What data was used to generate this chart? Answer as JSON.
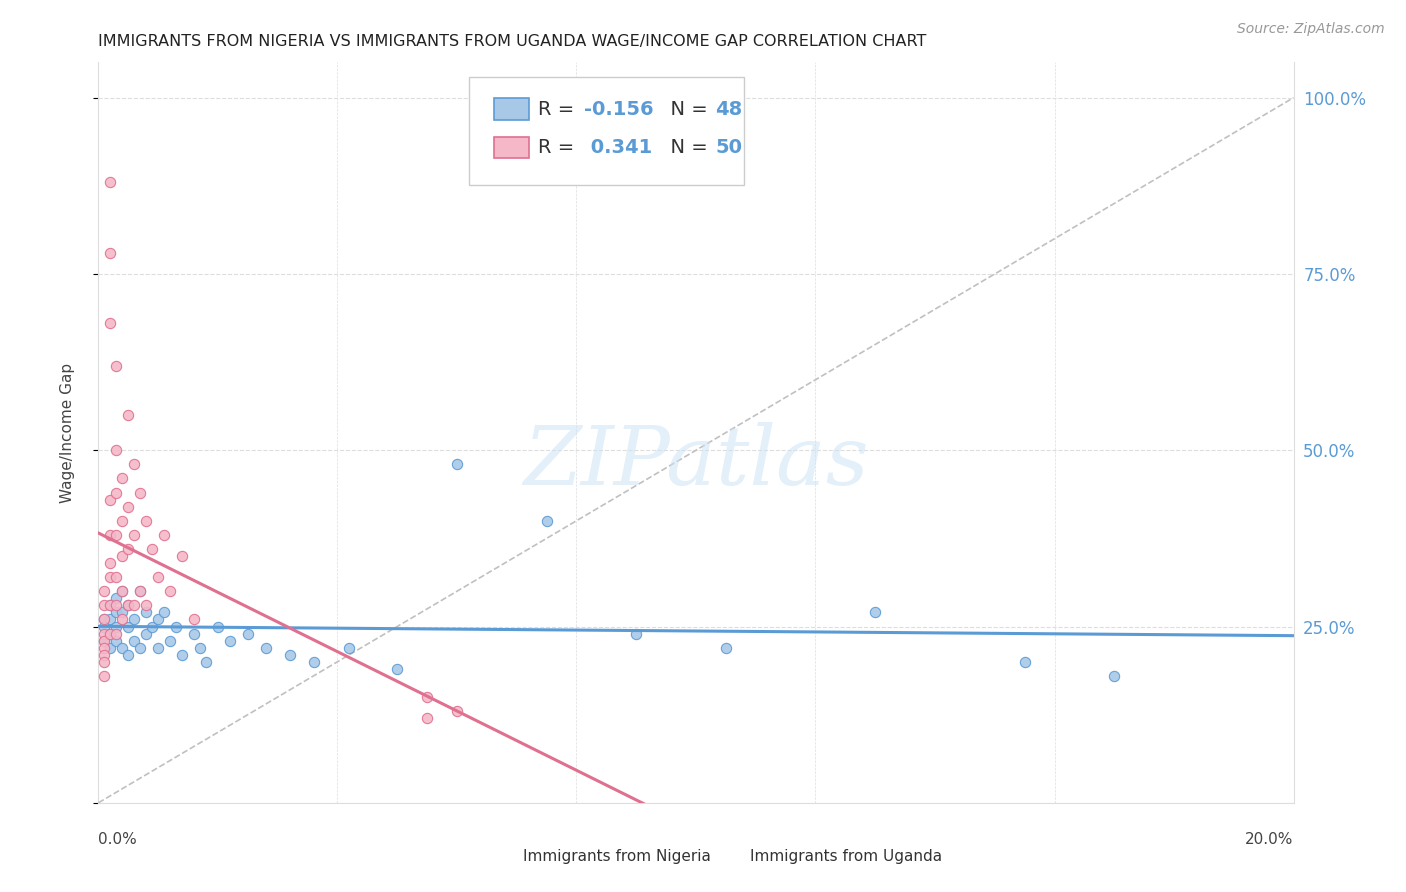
{
  "title": "IMMIGRANTS FROM NIGERIA VS IMMIGRANTS FROM UGANDA WAGE/INCOME GAP CORRELATION CHART",
  "source": "Source: ZipAtlas.com",
  "ylabel": "Wage/Income Gap",
  "legend_nigeria": "Immigrants from Nigeria",
  "legend_uganda": "Immigrants from Uganda",
  "R_nigeria": -0.156,
  "N_nigeria": 48,
  "R_uganda": 0.341,
  "N_uganda": 50,
  "color_nigeria_fill": "#a8c8e8",
  "color_nigeria_edge": "#5b9bd5",
  "color_uganda_fill": "#f4b8c8",
  "color_uganda_edge": "#e07090",
  "color_nigeria_line": "#5b9bd5",
  "color_uganda_line": "#e07090",
  "color_dashed": "#c0c0c0",
  "color_grid": "#dddddd",
  "nigeria_x": [
    0.001,
    0.001,
    0.001,
    0.002,
    0.002,
    0.002,
    0.002,
    0.003,
    0.003,
    0.003,
    0.003,
    0.004,
    0.004,
    0.004,
    0.005,
    0.005,
    0.005,
    0.006,
    0.006,
    0.007,
    0.007,
    0.008,
    0.008,
    0.009,
    0.01,
    0.01,
    0.011,
    0.012,
    0.013,
    0.014,
    0.016,
    0.017,
    0.018,
    0.02,
    0.022,
    0.025,
    0.028,
    0.032,
    0.036,
    0.042,
    0.05,
    0.06,
    0.075,
    0.09,
    0.105,
    0.13,
    0.155,
    0.17
  ],
  "nigeria_y": [
    0.26,
    0.25,
    0.23,
    0.28,
    0.26,
    0.24,
    0.22,
    0.29,
    0.27,
    0.25,
    0.23,
    0.3,
    0.27,
    0.22,
    0.28,
    0.25,
    0.21,
    0.26,
    0.23,
    0.3,
    0.22,
    0.27,
    0.24,
    0.25,
    0.26,
    0.22,
    0.27,
    0.23,
    0.25,
    0.21,
    0.24,
    0.22,
    0.2,
    0.25,
    0.23,
    0.24,
    0.22,
    0.21,
    0.2,
    0.22,
    0.19,
    0.48,
    0.4,
    0.24,
    0.22,
    0.27,
    0.2,
    0.18
  ],
  "uganda_x": [
    0.001,
    0.001,
    0.001,
    0.001,
    0.001,
    0.001,
    0.001,
    0.001,
    0.001,
    0.002,
    0.002,
    0.002,
    0.002,
    0.002,
    0.002,
    0.002,
    0.002,
    0.002,
    0.003,
    0.003,
    0.003,
    0.003,
    0.003,
    0.003,
    0.003,
    0.004,
    0.004,
    0.004,
    0.004,
    0.004,
    0.005,
    0.005,
    0.005,
    0.005,
    0.006,
    0.006,
    0.006,
    0.007,
    0.007,
    0.008,
    0.008,
    0.009,
    0.01,
    0.011,
    0.012,
    0.014,
    0.016,
    0.055,
    0.06,
    0.055
  ],
  "uganda_y": [
    0.3,
    0.28,
    0.26,
    0.24,
    0.23,
    0.22,
    0.21,
    0.2,
    0.18,
    0.88,
    0.78,
    0.68,
    0.43,
    0.38,
    0.34,
    0.32,
    0.28,
    0.24,
    0.62,
    0.5,
    0.44,
    0.38,
    0.32,
    0.28,
    0.24,
    0.46,
    0.4,
    0.35,
    0.3,
    0.26,
    0.55,
    0.42,
    0.36,
    0.28,
    0.48,
    0.38,
    0.28,
    0.44,
    0.3,
    0.4,
    0.28,
    0.36,
    0.32,
    0.38,
    0.3,
    0.35,
    0.26,
    0.15,
    0.13,
    0.12
  ],
  "xlim": [
    0.0,
    0.2
  ],
  "ylim": [
    0.0,
    1.05
  ],
  "yticks": [
    0.0,
    0.25,
    0.5,
    0.75,
    1.0
  ],
  "ytick_labels": [
    "",
    "25.0%",
    "50.0%",
    "75.0%",
    "100.0%"
  ]
}
